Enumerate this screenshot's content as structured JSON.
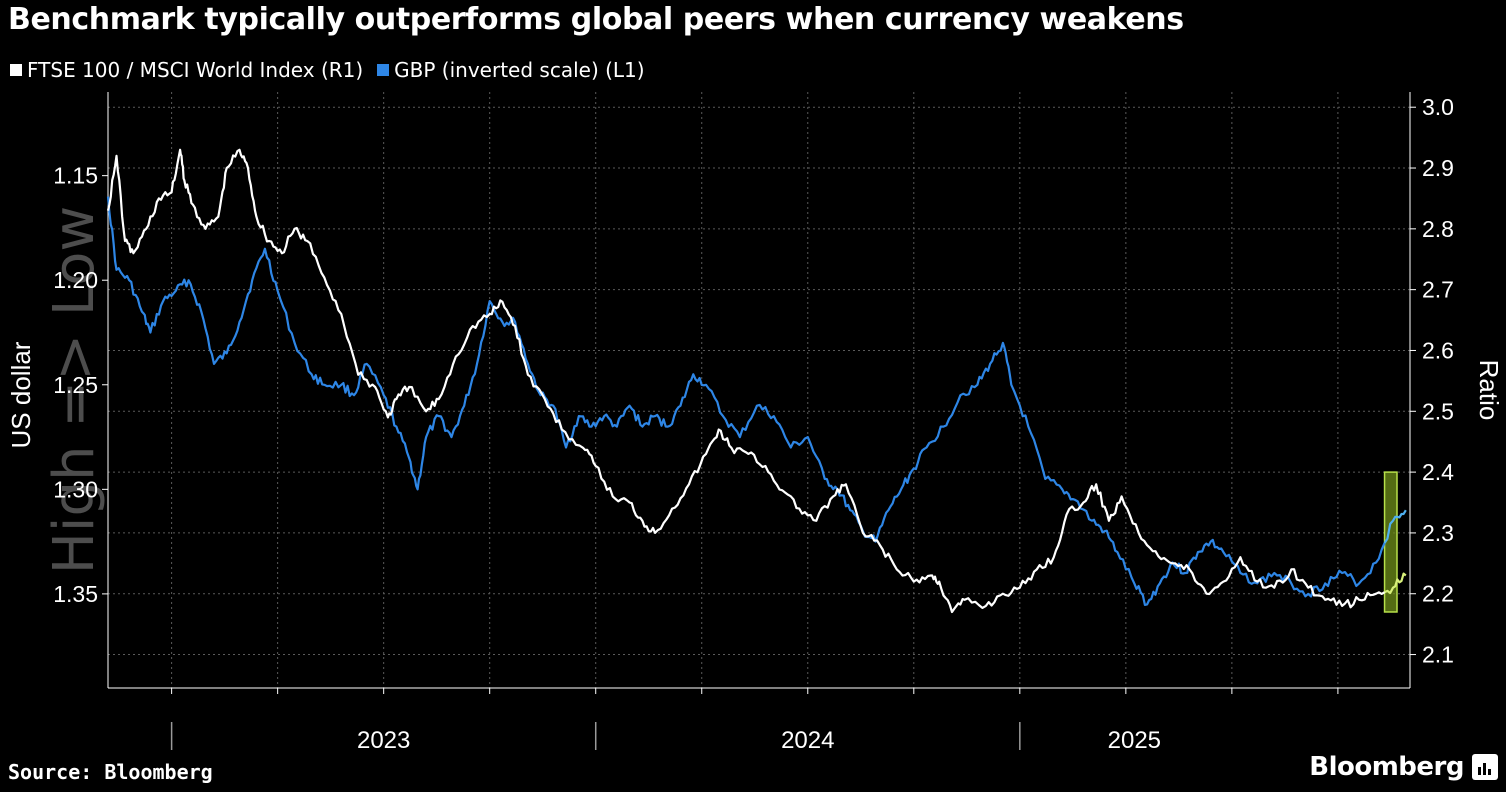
{
  "colors": {
    "background": "#000000",
    "ftse": "#ffffff",
    "gbp": "#2e86e6",
    "highlight_fill": "#6f8f1a",
    "highlight_border": "#b7e04a",
    "highlight_ftse": "#d8f07a",
    "highlight_gbp": "#4fb0f0",
    "grid": "#5a5a5a",
    "watermark": "#4d4d4d"
  },
  "title": "Benchmark typically outperforms global peers when currency weakens",
  "legend": {
    "ftse_label": "FTSE 100 / MSCI World Index (R1)",
    "gbp_label": "GBP (inverted scale) (L1)"
  },
  "footer": {
    "source": "Source: Bloomberg",
    "brand": "Bloomberg",
    "brand_icon": "bar-chart-icon"
  },
  "chart_data": {
    "type": "line",
    "title": "Benchmark typically outperforms global peers when currency weakens",
    "xlabel": "",
    "left_axis": {
      "label": "US dollar",
      "inverted": true,
      "range": [
        1.11,
        1.395
      ],
      "ticks": [
        1.15,
        1.2,
        1.25,
        1.3,
        1.35
      ],
      "tick_labels": [
        "1.15",
        "1.20",
        "1.25",
        "1.30",
        "1.35"
      ],
      "watermark": "High => Low"
    },
    "right_axis": {
      "label": "Ratio",
      "range": [
        2.045,
        3.025
      ],
      "ticks": [
        2.1,
        2.2,
        2.3,
        2.4,
        2.5,
        2.6,
        2.7,
        2.8,
        2.9,
        3.0
      ],
      "tick_labels": [
        "2.1",
        "2.2",
        "2.3",
        "2.4",
        "2.5",
        "2.6",
        "2.7",
        "2.8",
        "2.9",
        "3.0"
      ]
    },
    "x_range": [
      2022.6,
      2025.67
    ],
    "x_ticks": [
      2022.75,
      2023.0,
      2023.25,
      2023.5,
      2023.75,
      2024.0,
      2024.25,
      2024.5,
      2024.75,
      2025.0,
      2025.25,
      2025.5
    ],
    "year_labels": [
      {
        "label": "2023",
        "x": 2023.25
      },
      {
        "label": "2024",
        "x": 2024.25
      },
      {
        "label": "2025",
        "x": 2025.02
      }
    ],
    "year_separators": [
      2022.75,
      2023.75,
      2024.75
    ],
    "grid": true,
    "highlight": {
      "x_start": 2025.61,
      "x_end": 2025.74,
      "r_low": 2.17,
      "r_high": 2.4
    },
    "series": [
      {
        "name": "FTSE 100 / MSCI World Index",
        "axis": "right",
        "points": [
          [
            2022.6,
            2.83
          ],
          [
            2022.62,
            2.92
          ],
          [
            2022.64,
            2.78
          ],
          [
            2022.66,
            2.76
          ],
          [
            2022.69,
            2.8
          ],
          [
            2022.72,
            2.85
          ],
          [
            2022.75,
            2.86
          ],
          [
            2022.77,
            2.93
          ],
          [
            2022.78,
            2.88
          ],
          [
            2022.8,
            2.84
          ],
          [
            2022.83,
            2.8
          ],
          [
            2022.86,
            2.82
          ],
          [
            2022.88,
            2.9
          ],
          [
            2022.91,
            2.93
          ],
          [
            2022.93,
            2.9
          ],
          [
            2022.95,
            2.82
          ],
          [
            2022.98,
            2.78
          ],
          [
            2023.01,
            2.76
          ],
          [
            2023.04,
            2.8
          ],
          [
            2023.07,
            2.78
          ],
          [
            2023.11,
            2.72
          ],
          [
            2023.15,
            2.66
          ],
          [
            2023.19,
            2.56
          ],
          [
            2023.23,
            2.54
          ],
          [
            2023.26,
            2.49
          ],
          [
            2023.28,
            2.52
          ],
          [
            2023.31,
            2.54
          ],
          [
            2023.35,
            2.5
          ],
          [
            2023.38,
            2.52
          ],
          [
            2023.42,
            2.59
          ],
          [
            2023.46,
            2.64
          ],
          [
            2023.5,
            2.66
          ],
          [
            2023.53,
            2.68
          ],
          [
            2023.56,
            2.64
          ],
          [
            2023.59,
            2.56
          ],
          [
            2023.63,
            2.52
          ],
          [
            2023.67,
            2.47
          ],
          [
            2023.72,
            2.44
          ],
          [
            2023.75,
            2.41
          ],
          [
            2023.79,
            2.36
          ],
          [
            2023.83,
            2.35
          ],
          [
            2023.86,
            2.32
          ],
          [
            2023.89,
            2.3
          ],
          [
            2023.93,
            2.34
          ],
          [
            2023.97,
            2.38
          ],
          [
            2024.01,
            2.43
          ],
          [
            2024.04,
            2.47
          ],
          [
            2024.07,
            2.44
          ],
          [
            2024.11,
            2.43
          ],
          [
            2024.15,
            2.41
          ],
          [
            2024.19,
            2.37
          ],
          [
            2024.23,
            2.34
          ],
          [
            2024.27,
            2.32
          ],
          [
            2024.31,
            2.36
          ],
          [
            2024.34,
            2.38
          ],
          [
            2024.38,
            2.3
          ],
          [
            2024.42,
            2.28
          ],
          [
            2024.46,
            2.24
          ],
          [
            2024.5,
            2.22
          ],
          [
            2024.54,
            2.23
          ],
          [
            2024.56,
            2.22
          ],
          [
            2024.59,
            2.17
          ],
          [
            2024.62,
            2.19
          ],
          [
            2024.67,
            2.18
          ],
          [
            2024.71,
            2.2
          ],
          [
            2024.75,
            2.21
          ],
          [
            2024.79,
            2.24
          ],
          [
            2024.83,
            2.26
          ],
          [
            2024.86,
            2.33
          ],
          [
            2024.9,
            2.35
          ],
          [
            2024.93,
            2.38
          ],
          [
            2024.96,
            2.32
          ],
          [
            2024.99,
            2.36
          ],
          [
            2025.03,
            2.3
          ],
          [
            2025.07,
            2.27
          ],
          [
            2025.11,
            2.25
          ],
          [
            2025.15,
            2.24
          ],
          [
            2025.19,
            2.2
          ],
          [
            2025.23,
            2.22
          ],
          [
            2025.27,
            2.26
          ],
          [
            2025.31,
            2.22
          ],
          [
            2025.35,
            2.21
          ],
          [
            2025.39,
            2.24
          ],
          [
            2025.43,
            2.21
          ],
          [
            2025.47,
            2.19
          ],
          [
            2025.51,
            2.18
          ],
          [
            2025.55,
            2.19
          ],
          [
            2025.59,
            2.2
          ],
          [
            2025.63,
            2.21
          ],
          [
            2025.66,
            2.23
          ]
        ]
      },
      {
        "name": "GBP (inverted scale)",
        "axis": "left",
        "points": [
          [
            2022.6,
            1.16
          ],
          [
            2022.62,
            1.195
          ],
          [
            2022.65,
            1.2
          ],
          [
            2022.68,
            1.215
          ],
          [
            2022.7,
            1.225
          ],
          [
            2022.73,
            1.21
          ],
          [
            2022.76,
            1.205
          ],
          [
            2022.79,
            1.2
          ],
          [
            2022.82,
            1.215
          ],
          [
            2022.85,
            1.24
          ],
          [
            2022.88,
            1.235
          ],
          [
            2022.91,
            1.22
          ],
          [
            2022.94,
            1.2
          ],
          [
            2022.97,
            1.185
          ],
          [
            2023.0,
            1.205
          ],
          [
            2023.04,
            1.23
          ],
          [
            2023.08,
            1.245
          ],
          [
            2023.11,
            1.25
          ],
          [
            2023.15,
            1.25
          ],
          [
            2023.18,
            1.255
          ],
          [
            2023.21,
            1.24
          ],
          [
            2023.25,
            1.255
          ],
          [
            2023.28,
            1.27
          ],
          [
            2023.31,
            1.285
          ],
          [
            2023.33,
            1.3
          ],
          [
            2023.35,
            1.275
          ],
          [
            2023.38,
            1.265
          ],
          [
            2023.41,
            1.275
          ],
          [
            2023.44,
            1.26
          ],
          [
            2023.47,
            1.24
          ],
          [
            2023.5,
            1.21
          ],
          [
            2023.53,
            1.22
          ],
          [
            2023.56,
            1.22
          ],
          [
            2023.59,
            1.24
          ],
          [
            2023.62,
            1.255
          ],
          [
            2023.65,
            1.26
          ],
          [
            2023.68,
            1.28
          ],
          [
            2023.71,
            1.265
          ],
          [
            2023.74,
            1.27
          ],
          [
            2023.77,
            1.265
          ],
          [
            2023.8,
            1.27
          ],
          [
            2023.83,
            1.26
          ],
          [
            2023.86,
            1.27
          ],
          [
            2023.89,
            1.265
          ],
          [
            2023.92,
            1.27
          ],
          [
            2023.95,
            1.26
          ],
          [
            2023.98,
            1.245
          ],
          [
            2024.01,
            1.25
          ],
          [
            2024.05,
            1.265
          ],
          [
            2024.09,
            1.275
          ],
          [
            2024.13,
            1.26
          ],
          [
            2024.17,
            1.265
          ],
          [
            2024.21,
            1.28
          ],
          [
            2024.25,
            1.275
          ],
          [
            2024.29,
            1.295
          ],
          [
            2024.32,
            1.3
          ],
          [
            2024.35,
            1.31
          ],
          [
            2024.38,
            1.32
          ],
          [
            2024.41,
            1.325
          ],
          [
            2024.44,
            1.31
          ],
          [
            2024.47,
            1.3
          ],
          [
            2024.5,
            1.29
          ],
          [
            2024.53,
            1.28
          ],
          [
            2024.57,
            1.27
          ],
          [
            2024.61,
            1.255
          ],
          [
            2024.65,
            1.25
          ],
          [
            2024.68,
            1.24
          ],
          [
            2024.71,
            1.23
          ],
          [
            2024.73,
            1.25
          ],
          [
            2024.77,
            1.27
          ],
          [
            2024.81,
            1.295
          ],
          [
            2024.85,
            1.3
          ],
          [
            2024.88,
            1.305
          ],
          [
            2024.92,
            1.315
          ],
          [
            2024.95,
            1.32
          ],
          [
            2024.98,
            1.33
          ],
          [
            2025.02,
            1.345
          ],
          [
            2025.05,
            1.355
          ],
          [
            2025.08,
            1.345
          ],
          [
            2025.11,
            1.335
          ],
          [
            2025.14,
            1.34
          ],
          [
            2025.17,
            1.33
          ],
          [
            2025.2,
            1.325
          ],
          [
            2025.23,
            1.33
          ],
          [
            2025.27,
            1.34
          ],
          [
            2025.31,
            1.345
          ],
          [
            2025.35,
            1.34
          ],
          [
            2025.39,
            1.345
          ],
          [
            2025.43,
            1.35
          ],
          [
            2025.47,
            1.345
          ],
          [
            2025.51,
            1.34
          ],
          [
            2025.55,
            1.345
          ],
          [
            2025.59,
            1.335
          ],
          [
            2025.63,
            1.315
          ],
          [
            2025.66,
            1.31
          ]
        ]
      }
    ]
  }
}
